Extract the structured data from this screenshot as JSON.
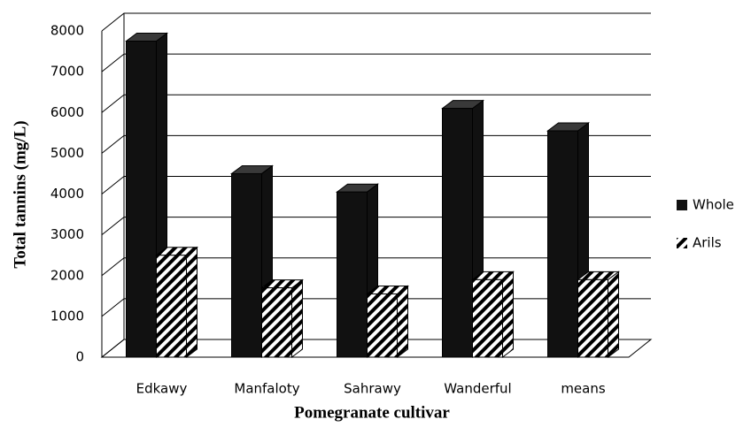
{
  "chart_data": {
    "type": "bar3d",
    "y_label": "Total tannins (mg/L)",
    "x_label": "Pomegranate cultivar",
    "categories": [
      "Edkawy",
      "Manfaloty",
      "Sahrawy",
      "Wanderful",
      "means"
    ],
    "series": [
      {
        "name": "Whole",
        "color": "#111111",
        "values": [
          7750,
          4500,
          4050,
          6100,
          5550
        ]
      },
      {
        "name": "Arils",
        "color": "#000000",
        "hatch": true,
        "values": [
          2500,
          1700,
          1550,
          1900,
          1900
        ]
      }
    ],
    "ylim": [
      0,
      8000
    ],
    "yticks": [
      0,
      1000,
      2000,
      3000,
      4000,
      5000,
      6000,
      7000,
      8000
    ],
    "grid": true,
    "legend": "right"
  }
}
